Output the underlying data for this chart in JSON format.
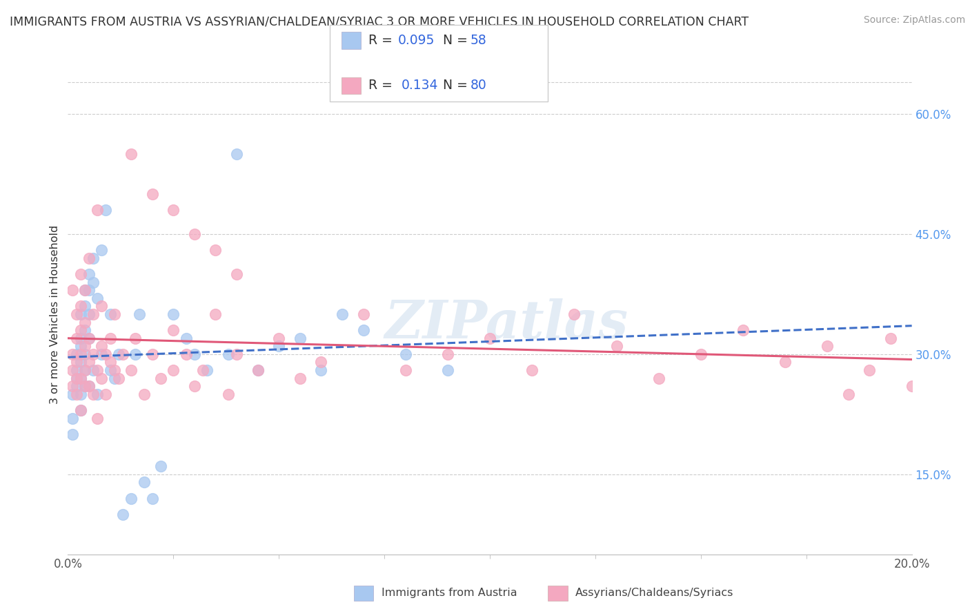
{
  "title": "IMMIGRANTS FROM AUSTRIA VS ASSYRIAN/CHALDEAN/SYRIAC 3 OR MORE VEHICLES IN HOUSEHOLD CORRELATION CHART",
  "source": "Source: ZipAtlas.com",
  "ylabel": "3 or more Vehicles in Household",
  "yticks_right": [
    "15.0%",
    "30.0%",
    "45.0%",
    "60.0%"
  ],
  "yticks_right_vals": [
    0.15,
    0.3,
    0.45,
    0.6
  ],
  "legend_blue_R": "0.095",
  "legend_blue_N": "58",
  "legend_pink_R": "0.134",
  "legend_pink_N": "80",
  "legend_label_blue": "Immigrants from Austria",
  "legend_label_pink": "Assyrians/Chaldeans/Syriacs",
  "blue_color": "#A8C8F0",
  "pink_color": "#F4A8C0",
  "blue_line_color": "#4070C8",
  "pink_line_color": "#E05878",
  "watermark": "ZIPatlas",
  "xmin": 0.0,
  "xmax": 0.2,
  "ymin": 0.05,
  "ymax": 0.65,
  "blue_scatter_x": [
    0.001,
    0.001,
    0.001,
    0.002,
    0.002,
    0.002,
    0.002,
    0.003,
    0.003,
    0.003,
    0.003,
    0.003,
    0.003,
    0.003,
    0.004,
    0.004,
    0.004,
    0.004,
    0.004,
    0.004,
    0.005,
    0.005,
    0.005,
    0.005,
    0.005,
    0.006,
    0.006,
    0.006,
    0.007,
    0.007,
    0.008,
    0.008,
    0.009,
    0.01,
    0.01,
    0.011,
    0.012,
    0.013,
    0.015,
    0.016,
    0.017,
    0.018,
    0.02,
    0.022,
    0.025,
    0.028,
    0.03,
    0.033,
    0.038,
    0.04,
    0.045,
    0.05,
    0.055,
    0.06,
    0.065,
    0.07,
    0.08,
    0.09
  ],
  "blue_scatter_y": [
    0.2,
    0.25,
    0.22,
    0.27,
    0.28,
    0.3,
    0.26,
    0.29,
    0.31,
    0.27,
    0.25,
    0.35,
    0.32,
    0.23,
    0.3,
    0.33,
    0.36,
    0.38,
    0.28,
    0.26,
    0.32,
    0.35,
    0.38,
    0.4,
    0.26,
    0.39,
    0.42,
    0.28,
    0.37,
    0.25,
    0.3,
    0.43,
    0.48,
    0.28,
    0.35,
    0.27,
    0.3,
    0.1,
    0.12,
    0.3,
    0.35,
    0.14,
    0.12,
    0.16,
    0.35,
    0.32,
    0.3,
    0.28,
    0.3,
    0.55,
    0.28,
    0.31,
    0.32,
    0.28,
    0.35,
    0.33,
    0.3,
    0.28
  ],
  "pink_scatter_x": [
    0.001,
    0.001,
    0.001,
    0.001,
    0.002,
    0.002,
    0.002,
    0.002,
    0.002,
    0.003,
    0.003,
    0.003,
    0.003,
    0.003,
    0.003,
    0.004,
    0.004,
    0.004,
    0.004,
    0.004,
    0.005,
    0.005,
    0.005,
    0.005,
    0.006,
    0.006,
    0.006,
    0.007,
    0.007,
    0.007,
    0.008,
    0.008,
    0.008,
    0.009,
    0.009,
    0.01,
    0.01,
    0.011,
    0.011,
    0.012,
    0.013,
    0.015,
    0.016,
    0.018,
    0.02,
    0.022,
    0.025,
    0.025,
    0.028,
    0.03,
    0.032,
    0.035,
    0.038,
    0.04,
    0.045,
    0.05,
    0.055,
    0.06,
    0.07,
    0.08,
    0.09,
    0.1,
    0.11,
    0.12,
    0.13,
    0.14,
    0.15,
    0.16,
    0.17,
    0.18,
    0.185,
    0.19,
    0.195,
    0.2,
    0.015,
    0.02,
    0.025,
    0.03,
    0.035,
    0.04
  ],
  "pink_scatter_y": [
    0.28,
    0.3,
    0.26,
    0.38,
    0.27,
    0.32,
    0.25,
    0.29,
    0.35,
    0.3,
    0.27,
    0.33,
    0.36,
    0.4,
    0.23,
    0.31,
    0.34,
    0.28,
    0.26,
    0.38,
    0.29,
    0.32,
    0.26,
    0.42,
    0.3,
    0.35,
    0.25,
    0.28,
    0.48,
    0.22,
    0.31,
    0.27,
    0.36,
    0.3,
    0.25,
    0.29,
    0.32,
    0.28,
    0.35,
    0.27,
    0.3,
    0.28,
    0.32,
    0.25,
    0.3,
    0.27,
    0.33,
    0.28,
    0.3,
    0.26,
    0.28,
    0.35,
    0.25,
    0.3,
    0.28,
    0.32,
    0.27,
    0.29,
    0.35,
    0.28,
    0.3,
    0.32,
    0.28,
    0.35,
    0.31,
    0.27,
    0.3,
    0.33,
    0.29,
    0.31,
    0.25,
    0.28,
    0.32,
    0.26,
    0.55,
    0.5,
    0.48,
    0.45,
    0.43,
    0.4
  ]
}
